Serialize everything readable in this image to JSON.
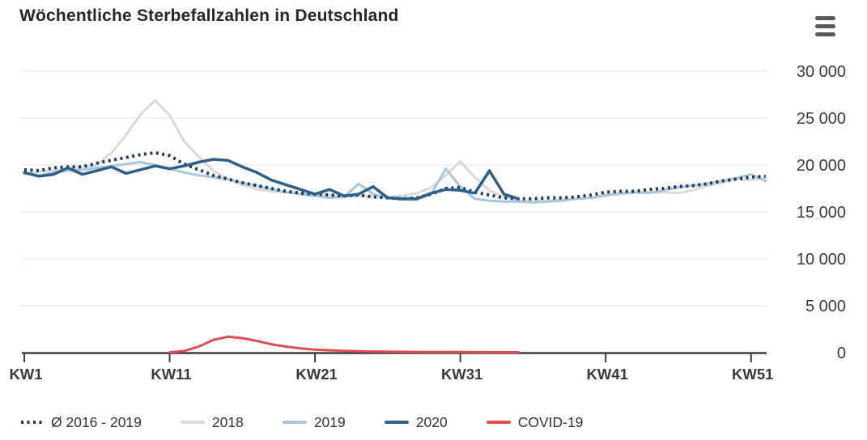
{
  "header": {
    "title": "Wöchentliche Sterbefallzahlen in Deutschland"
  },
  "menu": {
    "icon": "hamburger-menu-icon"
  },
  "axes": {
    "y_ticks": [
      "0",
      "5 000",
      "10 000",
      "15 000",
      "20 000",
      "25 000",
      "30 000"
    ],
    "x_ticks": [
      "KW1",
      "KW11",
      "KW21",
      "KW31",
      "KW41",
      "KW51"
    ]
  },
  "legend": {
    "items": [
      {
        "label": "Ø 2016 - 2019",
        "color": "#1f3a54",
        "style": "dotted"
      },
      {
        "label": "2018",
        "color": "#dadada",
        "style": "solid"
      },
      {
        "label": "2019",
        "color": "#a9c6df",
        "style": "solid"
      },
      {
        "label": "2020",
        "color": "#2d5f8b",
        "style": "solid"
      },
      {
        "label": "COVID-19",
        "color": "#e04e50",
        "style": "solid"
      }
    ]
  },
  "colors": {
    "gridline": "#ebebeb",
    "axis": "#3d3d3d",
    "tick_label": "#3a3a3a",
    "title": "#26262f",
    "menu_icon": "#58585a"
  },
  "chart_data": {
    "type": "line",
    "title": "Wöchentliche Sterbefallzahlen in Deutschland",
    "xlabel": "",
    "ylabel": "",
    "ylim": [
      0,
      30000
    ],
    "y_tick_values": [
      0,
      5000,
      10000,
      15000,
      20000,
      25000,
      30000
    ],
    "x_range_weeks": [
      1,
      52
    ],
    "x_tick_weeks": [
      1,
      11,
      21,
      31,
      41,
      51
    ],
    "x_tick_labels": [
      "KW1",
      "KW11",
      "KW21",
      "KW31",
      "KW41",
      "KW51"
    ],
    "grid": "horizontal",
    "legend_position": "bottom",
    "series": [
      {
        "name": "Ø 2016 - 2019",
        "color": "#1f3a54",
        "style": "dotted",
        "width": 4,
        "start_week": 1,
        "values": [
          19500,
          19400,
          19700,
          19800,
          19800,
          20200,
          20500,
          20800,
          21100,
          21300,
          21000,
          20100,
          19500,
          18900,
          18500,
          18100,
          17800,
          17500,
          17200,
          17000,
          16900,
          16800,
          16700,
          16800,
          16600,
          16500,
          16400,
          16500,
          16900,
          17500,
          17600,
          17100,
          16800,
          16500,
          16400,
          16400,
          16500,
          16500,
          16600,
          16800,
          17100,
          17200,
          17200,
          17400,
          17500,
          17700,
          17800,
          18000,
          18300,
          18500,
          18700,
          18800
        ]
      },
      {
        "name": "2018",
        "color": "#dadada",
        "style": "solid",
        "width": 3,
        "start_week": 1,
        "values": [
          19000,
          19300,
          19400,
          19600,
          19800,
          20000,
          21300,
          23200,
          25400,
          26900,
          25300,
          22500,
          20900,
          19400,
          18500,
          17900,
          17400,
          17200,
          17100,
          17000,
          16900,
          16800,
          16700,
          16700,
          16600,
          16600,
          16700,
          17000,
          17600,
          18900,
          20400,
          18700,
          17300,
          16600,
          16200,
          16100,
          16200,
          16300,
          16400,
          16500,
          16700,
          16900,
          17000,
          17100,
          17100,
          17000,
          17300,
          17800,
          18100,
          18500,
          18400,
          18600
        ]
      },
      {
        "name": "2019",
        "color": "#a9c6df",
        "style": "solid",
        "width": 3,
        "start_week": 1,
        "values": [
          19100,
          18900,
          19200,
          19400,
          19500,
          19700,
          19900,
          20100,
          20300,
          20000,
          19600,
          19200,
          18900,
          18700,
          18500,
          18100,
          17800,
          17400,
          17100,
          16900,
          16700,
          16500,
          16600,
          18000,
          16900,
          16500,
          16300,
          16300,
          16900,
          19600,
          17700,
          16400,
          16200,
          16100,
          16100,
          16000,
          16100,
          16200,
          16400,
          16500,
          16800,
          17000,
          17100,
          17000,
          17300,
          17600,
          17800,
          18000,
          18300,
          18600,
          19000,
          18300
        ]
      },
      {
        "name": "2020",
        "color": "#2d5f8b",
        "style": "solid",
        "width": 3.5,
        "start_week": 1,
        "values": [
          19200,
          18800,
          19000,
          19700,
          19000,
          19400,
          19800,
          19100,
          19500,
          19900,
          19600,
          19900,
          20300,
          20600,
          20500,
          19800,
          19200,
          18400,
          17900,
          17400,
          16900,
          17400,
          16700,
          16900,
          17700,
          16500,
          16400,
          16400,
          17000,
          17400,
          17300,
          17000,
          19400,
          16900,
          16400
        ]
      },
      {
        "name": "COVID-19",
        "color": "#e04e50",
        "style": "solid",
        "width": 3,
        "start_week": 11,
        "values": [
          30,
          180,
          650,
          1350,
          1700,
          1550,
          1250,
          900,
          650,
          450,
          330,
          250,
          190,
          150,
          120,
          100,
          90,
          80,
          70,
          60,
          60,
          55,
          50,
          45,
          40
        ]
      }
    ]
  }
}
